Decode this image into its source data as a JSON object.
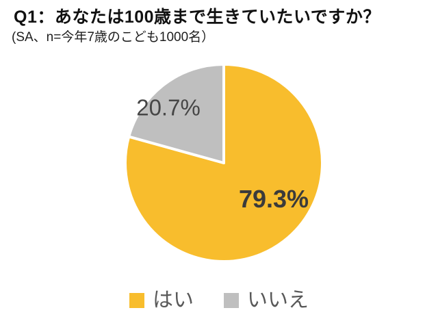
{
  "chart_data": {
    "type": "pie",
    "title": "Q1：あなたは100歳まで生きていたいですか？",
    "subtitle": "(SA、n=今年7歳のこども1000名）",
    "categories": [
      "はい",
      "いいえ"
    ],
    "values": [
      79.3,
      20.7
    ],
    "labels": [
      "79.3%",
      "20.7%"
    ],
    "colors": [
      "#F8BD2D",
      "#BFBFBF"
    ],
    "slice_border_color": "#FFFFFF",
    "start_angle_deg": 0,
    "direction": "clockwise",
    "data_label_color": "#404040",
    "legend": {
      "position": "bottom",
      "entries": [
        "はい",
        "いいえ"
      ],
      "text_color": "#595959"
    },
    "background": "#FFFFFF"
  }
}
